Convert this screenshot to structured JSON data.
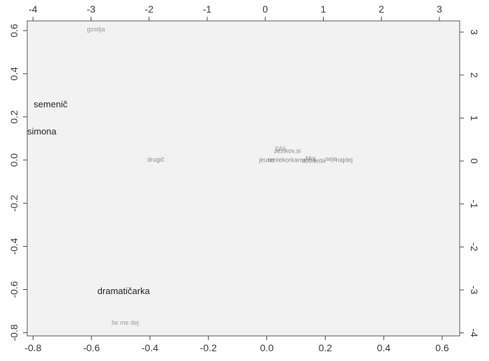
{
  "chart_data": {
    "type": "scatter",
    "title": "",
    "xlabel": "",
    "ylabel": "",
    "xlim": [
      -0.82,
      0.66
    ],
    "ylim": [
      -0.815,
      0.645
    ],
    "top_axis": {
      "lim": [
        -4.1,
        3.35
      ],
      "ticks": [
        -4,
        -3,
        -2,
        -1,
        0,
        1,
        2,
        3
      ]
    },
    "right_axis": {
      "lim": [
        -4.07,
        3.26
      ],
      "ticks": [
        -4,
        -3,
        -2,
        -1,
        0,
        1,
        2,
        3
      ]
    },
    "x_ticks": [
      -0.8,
      -0.6,
      -0.4,
      -0.2,
      0.0,
      0.2,
      0.4,
      0.6
    ],
    "y_ticks": [
      -0.8,
      -0.6,
      -0.4,
      -0.2,
      0.0,
      0.2,
      0.4,
      0.6
    ],
    "tick_labels": {
      "x": [
        "-0.8",
        "-0.6",
        "-0.4",
        "-0.2",
        "0.0",
        "0.2",
        "0.4",
        "0.6"
      ],
      "y": [
        "-0.8",
        "-0.6",
        "-0.4",
        "-0.2",
        "0.0",
        "0.2",
        "0.4",
        "0.6"
      ],
      "top": [
        "-4",
        "-3",
        "-2",
        "-1",
        "0",
        "1",
        "2",
        "3"
      ],
      "right": [
        "-4",
        "-3",
        "-2",
        "-1",
        "0",
        "1",
        "2",
        "3"
      ]
    },
    "grid": false,
    "plot_background": "#f2f2f2",
    "points": [
      {
        "label": "gostija",
        "x": -0.585,
        "y": 0.605,
        "color": "#9a9a9a",
        "weight": "small"
      },
      {
        "label": "semenič",
        "x": -0.74,
        "y": 0.255,
        "color": "#222222",
        "weight": "large"
      },
      {
        "label": "simona",
        "x": -0.77,
        "y": 0.13,
        "color": "#222222",
        "weight": "large"
      },
      {
        "label": "drugič",
        "x": -0.38,
        "y": 0.0,
        "color": "#8a8a8a",
        "weight": "small"
      },
      {
        "label": "dramatičarka",
        "x": -0.49,
        "y": -0.61,
        "color": "#222222",
        "weight": "large"
      },
      {
        "label": "še me dej",
        "x": -0.485,
        "y": -0.755,
        "color": "#9a9a9a",
        "weight": "small"
      },
      {
        "label": "Jezikov.si",
        "x": 0.07,
        "y": 0.04,
        "color": "#8a8a8a",
        "weight": "small"
      },
      {
        "label": "2Ali",
        "x": 0.045,
        "y": 0.05,
        "color": "#9a9a9a",
        "weight": "small"
      },
      {
        "label": "jeuno",
        "x": 0.0,
        "y": -0.002,
        "color": "#8a8a8a",
        "weight": "small"
      },
      {
        "label": "tentekorkama",
        "x": 0.07,
        "y": -0.002,
        "color": "#8a8a8a",
        "weight": "small"
      },
      {
        "label": "Moj",
        "x": 0.15,
        "y": 0.005,
        "color": "#8a8a8a",
        "weight": "small"
      },
      {
        "label": "dobiteda",
        "x": 0.16,
        "y": -0.004,
        "color": "#8a8a8a",
        "weight": "small"
      },
      {
        "label": "seje",
        "x": 0.22,
        "y": 0.003,
        "color": "#8a8a8a",
        "weight": "small"
      },
      {
        "label": "najdej",
        "x": 0.265,
        "y": -0.002,
        "color": "#8a8a8a",
        "weight": "small"
      }
    ]
  }
}
